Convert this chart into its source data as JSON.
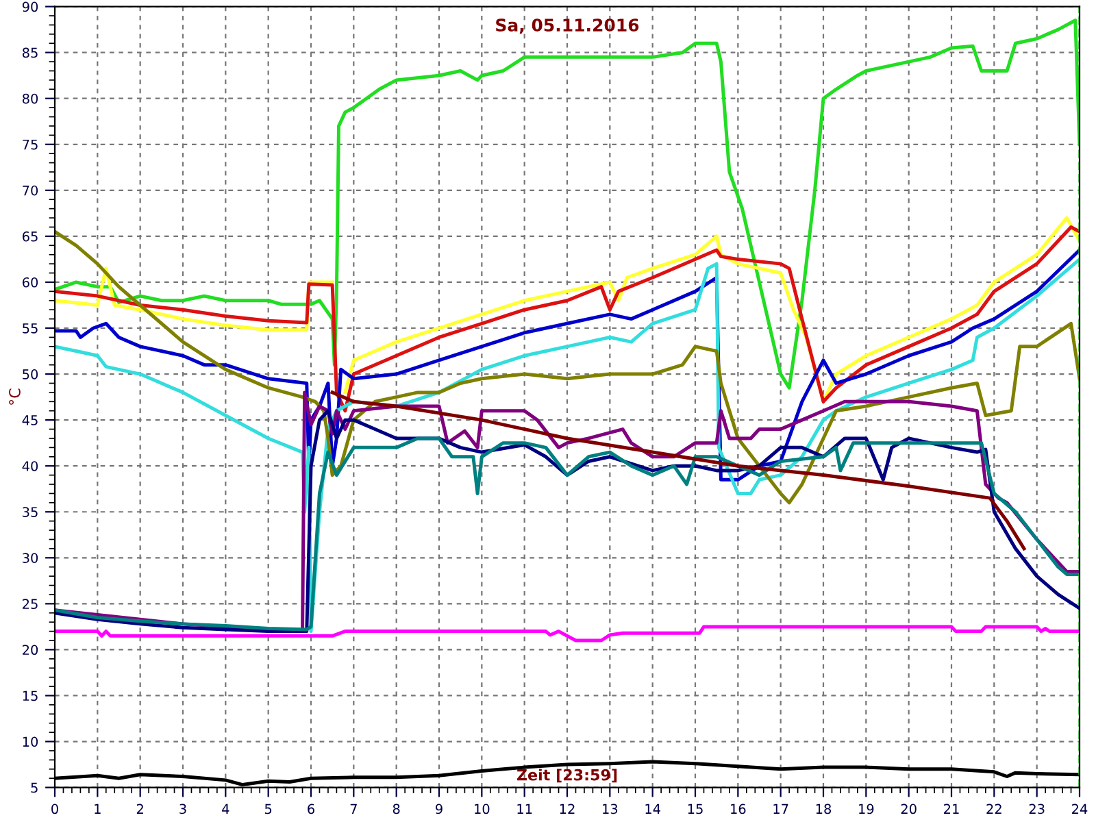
{
  "chart_data": {
    "type": "line",
    "title": "Sa, 05.11.2016",
    "xlabel": "Zeit [23:59]",
    "ylabel": "°C",
    "xlim": [
      0,
      24
    ],
    "xticks": [
      0,
      1,
      2,
      3,
      4,
      5,
      6,
      7,
      8,
      9,
      10,
      11,
      12,
      13,
      14,
      15,
      16,
      17,
      18,
      19,
      20,
      21,
      22,
      23,
      24
    ],
    "ylim": [
      5,
      90
    ],
    "yticks": [
      5,
      10,
      15,
      20,
      25,
      30,
      35,
      40,
      45,
      50,
      55,
      60,
      65,
      70,
      75,
      80,
      85,
      90
    ],
    "grid": true,
    "legend": false,
    "marker": "none",
    "line_style": "solid",
    "ref_lines": [
      {
        "axis": "x",
        "value": 24,
        "color": "#22cc22",
        "line_style": "dashed"
      }
    ],
    "series": [
      {
        "color": "#22dd22",
        "x": [
          0,
          0.5,
          1,
          1.3,
          1.5,
          2,
          2.5,
          3,
          3.5,
          4,
          5,
          5.3,
          6,
          6.2,
          6.5,
          6.55,
          6.6,
          6.65,
          6.8,
          7,
          7.3,
          7.6,
          8,
          9,
          9.5,
          9.9,
          10,
          10.5,
          11,
          12,
          13,
          14,
          14.7,
          15,
          15.5,
          15.6,
          15.8,
          16.1,
          16.5,
          17,
          17.2,
          17.5,
          17.8,
          18,
          18.3,
          18.8,
          19,
          20,
          20.5,
          21,
          21.5,
          21.7,
          22.3,
          22.5,
          23,
          23.5,
          23.9,
          24
        ],
        "values": [
          59.2,
          60,
          59.5,
          59.5,
          57.8,
          58.5,
          58,
          58,
          58.5,
          58,
          58,
          57.6,
          57.6,
          58,
          56,
          51,
          59,
          77,
          78.5,
          79,
          80,
          81,
          82,
          82.5,
          83,
          82,
          82.5,
          83,
          84.5,
          84.5,
          84.5,
          84.5,
          85,
          86,
          86,
          84,
          72,
          68,
          60,
          50,
          48.5,
          58,
          70,
          80,
          81,
          82.5,
          83,
          84,
          84.5,
          85.5,
          85.7,
          83,
          83,
          86,
          86.5,
          87.5,
          88.5,
          75
        ]
      },
      {
        "color": "#ffff33",
        "x": [
          0,
          1,
          1.2,
          1.4,
          2,
          3,
          4,
          5,
          5.9,
          5.95,
          6.5,
          6.6,
          6.8,
          7,
          8,
          9,
          10,
          11,
          12,
          13,
          13.2,
          13.4,
          14,
          15,
          15.5,
          15.6,
          16,
          17,
          17.3,
          17.6,
          18,
          18.3,
          19,
          20,
          21,
          21.6,
          22,
          23,
          23.7,
          24
        ],
        "values": [
          58,
          57.5,
          61.5,
          57.5,
          57,
          56,
          55.3,
          54.8,
          54.8,
          60,
          60,
          null,
          48,
          51.5,
          53.5,
          55,
          56.5,
          58,
          59,
          60,
          58,
          60.5,
          61.5,
          63,
          65,
          63,
          62,
          61,
          57,
          54,
          47,
          50,
          52,
          54,
          56,
          57.5,
          60,
          63,
          67,
          64.5
        ]
      },
      {
        "color": "#dd1111",
        "x": [
          0,
          1,
          2,
          3,
          4,
          5,
          5.9,
          5.95,
          6.5,
          6.6,
          6.8,
          7,
          8,
          9,
          10,
          11,
          12,
          12.8,
          13,
          13.2,
          14,
          15,
          15.5,
          15.6,
          16,
          17,
          17.2,
          17.5,
          18,
          18.3,
          19,
          20,
          21,
          21.6,
          22,
          23,
          23.8,
          24
        ],
        "values": [
          59,
          58.5,
          57.5,
          57,
          56.3,
          55.8,
          55.6,
          59.8,
          59.7,
          48,
          46,
          50,
          52,
          54,
          55.5,
          57,
          58,
          59.5,
          57,
          59,
          60.5,
          62.5,
          63.5,
          62.8,
          62.5,
          62,
          61.5,
          56,
          47,
          48.5,
          51,
          53,
          55,
          56.5,
          59,
          62,
          66,
          65.5
        ]
      },
      {
        "color": "#0000cc",
        "x": [
          0,
          0.5,
          0.6,
          0.9,
          1.2,
          1.5,
          2,
          3,
          3.5,
          4,
          5,
          5.9,
          5.95,
          6,
          6.2,
          6.4,
          6.5,
          6.6,
          6.7,
          7,
          8,
          9,
          10,
          11,
          12,
          13,
          13.5,
          14,
          15,
          15.5,
          15.6,
          16,
          16.5,
          17,
          17.5,
          18,
          18.3,
          19,
          20,
          21,
          21.5,
          22,
          23,
          24
        ],
        "values": [
          54.7,
          54.7,
          54,
          55,
          55.5,
          54,
          53,
          52,
          51,
          51,
          49.5,
          49,
          40,
          45,
          46.5,
          49,
          40,
          43,
          50.5,
          49.5,
          50,
          51.5,
          53,
          54.5,
          55.5,
          56.5,
          56,
          57,
          59,
          60.5,
          38.5,
          38.5,
          40,
          40.5,
          47,
          51.5,
          49,
          50,
          52,
          53.5,
          55,
          56,
          59,
          63.5
        ]
      },
      {
        "color": "#33dddd",
        "x": [
          0,
          0.5,
          1,
          1.2,
          2,
          3,
          4,
          5,
          5.8,
          5.85,
          5.95,
          6,
          6.2,
          6.4,
          6.6,
          7,
          8,
          9,
          10,
          11,
          12,
          13,
          13.5,
          14,
          15,
          15.3,
          15.5,
          15.55,
          16,
          16.3,
          16.5,
          17,
          17.5,
          18,
          18.3,
          19,
          20,
          21,
          21.5,
          21.6,
          22,
          23,
          24
        ],
        "values": [
          53,
          52.5,
          52,
          50.8,
          50,
          48,
          45.5,
          43,
          41.5,
          35,
          42,
          22,
          35,
          44,
          46,
          47,
          46.5,
          48,
          50.5,
          52,
          53,
          54,
          53.5,
          55.5,
          57,
          61.5,
          62,
          42,
          37,
          37,
          38.5,
          39,
          41,
          45,
          46,
          47.5,
          49,
          50.5,
          51.5,
          54,
          55,
          58.5,
          62.5
        ]
      },
      {
        "color": "#808000",
        "x": [
          0,
          0.5,
          1,
          1.5,
          2,
          3,
          4,
          5,
          5.8,
          6.1,
          6.3,
          6.4,
          6.5,
          6.7,
          7,
          7.5,
          8,
          8.5,
          9,
          9.5,
          10,
          11,
          12,
          13,
          14,
          14.7,
          15,
          15.5,
          15.6,
          16,
          16.5,
          17,
          17.2,
          17.5,
          18,
          18.3,
          19,
          20,
          21,
          21.6,
          21.8,
          22.4,
          22.6,
          23,
          23.8,
          24
        ],
        "values": [
          65.5,
          64,
          62,
          59.5,
          57.5,
          53.5,
          50.5,
          48.5,
          47.5,
          47,
          46,
          43,
          39,
          40,
          45,
          47,
          47.5,
          48,
          48,
          49,
          49.5,
          50,
          49.5,
          50,
          50,
          51,
          53,
          52.5,
          49,
          43,
          40,
          37,
          36,
          38,
          43,
          46,
          46.5,
          47.5,
          48.5,
          49,
          45.5,
          46,
          53,
          53,
          55.5,
          49.5
        ]
      },
      {
        "color": "#800080",
        "x": [
          0,
          1,
          2,
          3,
          4,
          5,
          5.8,
          5.85,
          6,
          6.2,
          6.4,
          6.5,
          6.6,
          6.8,
          7,
          8,
          9,
          9.2,
          9.6,
          9.9,
          10,
          11,
          11.3,
          11.8,
          12,
          12.5,
          13.3,
          13.5,
          14,
          14.5,
          15,
          15.5,
          15.6,
          15.8,
          16.3,
          16.5,
          17,
          17.5,
          18,
          18.5,
          19,
          20,
          21,
          21.6,
          21.8,
          22.1,
          22.3,
          23,
          23.7,
          24
        ],
        "values": [
          24.3,
          23.8,
          23.3,
          22.8,
          22.5,
          22.2,
          22.1,
          48,
          44.5,
          46.5,
          46,
          43.5,
          46,
          44,
          46,
          46.5,
          46.5,
          42.5,
          43.8,
          42,
          46,
          46,
          45,
          42,
          42.5,
          43,
          44,
          42.5,
          41,
          41,
          42.5,
          42.5,
          46,
          43,
          43,
          44,
          44,
          45,
          46,
          47,
          47,
          47,
          46.5,
          46,
          38,
          36.5,
          36,
          32,
          28.5,
          28.5
        ]
      },
      {
        "color": "#000080",
        "x": [
          0,
          1,
          2,
          3,
          4,
          5,
          5.9,
          6,
          6.2,
          6.4,
          6.6,
          6.8,
          7,
          7.5,
          8,
          9,
          9.5,
          10,
          11,
          11.5,
          12,
          12.5,
          13,
          14,
          14.5,
          15,
          15.5,
          16,
          16.5,
          17,
          17.5,
          18,
          18.5,
          19,
          19.4,
          19.6,
          20,
          20.5,
          21,
          21.6,
          21.8,
          22,
          22.5,
          23,
          23.5,
          24
        ],
        "values": [
          24,
          23.3,
          22.8,
          22.4,
          22.2,
          22,
          22,
          40,
          45,
          46,
          43,
          45,
          45,
          44,
          43,
          43,
          42,
          41.5,
          42.3,
          41,
          39,
          40.5,
          41,
          39.5,
          40,
          40,
          39.5,
          39.5,
          40,
          42,
          42,
          41,
          43,
          43,
          38.5,
          42,
          43,
          42.5,
          42,
          41.5,
          41.8,
          35,
          31,
          28,
          26,
          24.5
        ]
      },
      {
        "color": "#008080",
        "x": [
          0,
          1,
          2,
          3,
          4,
          5,
          5.9,
          6,
          6.2,
          6.4,
          6.6,
          6.8,
          7,
          7.3,
          8,
          8.5,
          9,
          9.3,
          9.8,
          9.9,
          10,
          10.5,
          11,
          11.5,
          12,
          12.5,
          13,
          13.5,
          14,
          14.5,
          14.8,
          15,
          15.5,
          16,
          16.5,
          17,
          18,
          18.3,
          18.4,
          18.7,
          19,
          20,
          21,
          21.7,
          22,
          22.5,
          23,
          23.5,
          23.7,
          24
        ],
        "values": [
          24.3,
          23.5,
          23.1,
          22.8,
          22.6,
          22.3,
          22.2,
          22.5,
          37,
          41.5,
          39,
          40.5,
          42,
          42,
          42,
          43,
          43,
          41,
          41,
          37,
          41,
          42.5,
          42.5,
          42,
          39,
          41,
          41.5,
          40,
          39,
          40,
          38,
          41,
          41,
          40,
          39,
          40.5,
          41,
          42,
          39.5,
          42.5,
          42.5,
          42.5,
          42.5,
          42.5,
          37,
          35,
          32,
          29,
          28.2,
          28.2
        ]
      },
      {
        "color": "#800000",
        "x": [
          6.5,
          7,
          8,
          10,
          12,
          14,
          16,
          18,
          20,
          21.9,
          22.3,
          22.7
        ],
        "values": [
          48,
          47,
          46.5,
          45,
          43,
          41.5,
          40,
          39,
          37.8,
          36.5,
          34,
          31
        ]
      },
      {
        "color": "#ff00ff",
        "x": [
          0,
          1,
          1.1,
          1.2,
          1.3,
          6.5,
          6.8,
          11.5,
          11.6,
          11.8,
          12.2,
          12.8,
          13,
          13.3,
          15.1,
          15.2,
          21,
          21.1,
          21.7,
          21.8,
          23,
          23.1,
          23.2,
          23.3,
          24
        ],
        "values": [
          22,
          22,
          21.5,
          22,
          21.5,
          21.5,
          22,
          22,
          21.6,
          22,
          21,
          21,
          21.6,
          21.8,
          21.8,
          22.5,
          22.5,
          22,
          22,
          22.5,
          22.5,
          22,
          22.3,
          22,
          22
        ]
      },
      {
        "color": "#000000",
        "x": [
          0,
          1,
          1.5,
          2,
          3,
          4,
          4.4,
          5,
          5.5,
          6,
          7,
          8,
          9,
          10,
          11,
          12,
          13,
          14,
          15,
          16,
          17,
          18,
          19,
          20,
          21,
          22,
          22.3,
          22.5,
          23,
          24
        ],
        "values": [
          6,
          6.3,
          6,
          6.4,
          6.2,
          5.8,
          5.3,
          5.7,
          5.6,
          6,
          6.1,
          6.1,
          6.3,
          6.8,
          7.2,
          7.5,
          7.6,
          7.8,
          7.6,
          7.3,
          7,
          7.2,
          7.2,
          7,
          7,
          6.7,
          6.2,
          6.6,
          6.5,
          6.4
        ]
      }
    ]
  }
}
